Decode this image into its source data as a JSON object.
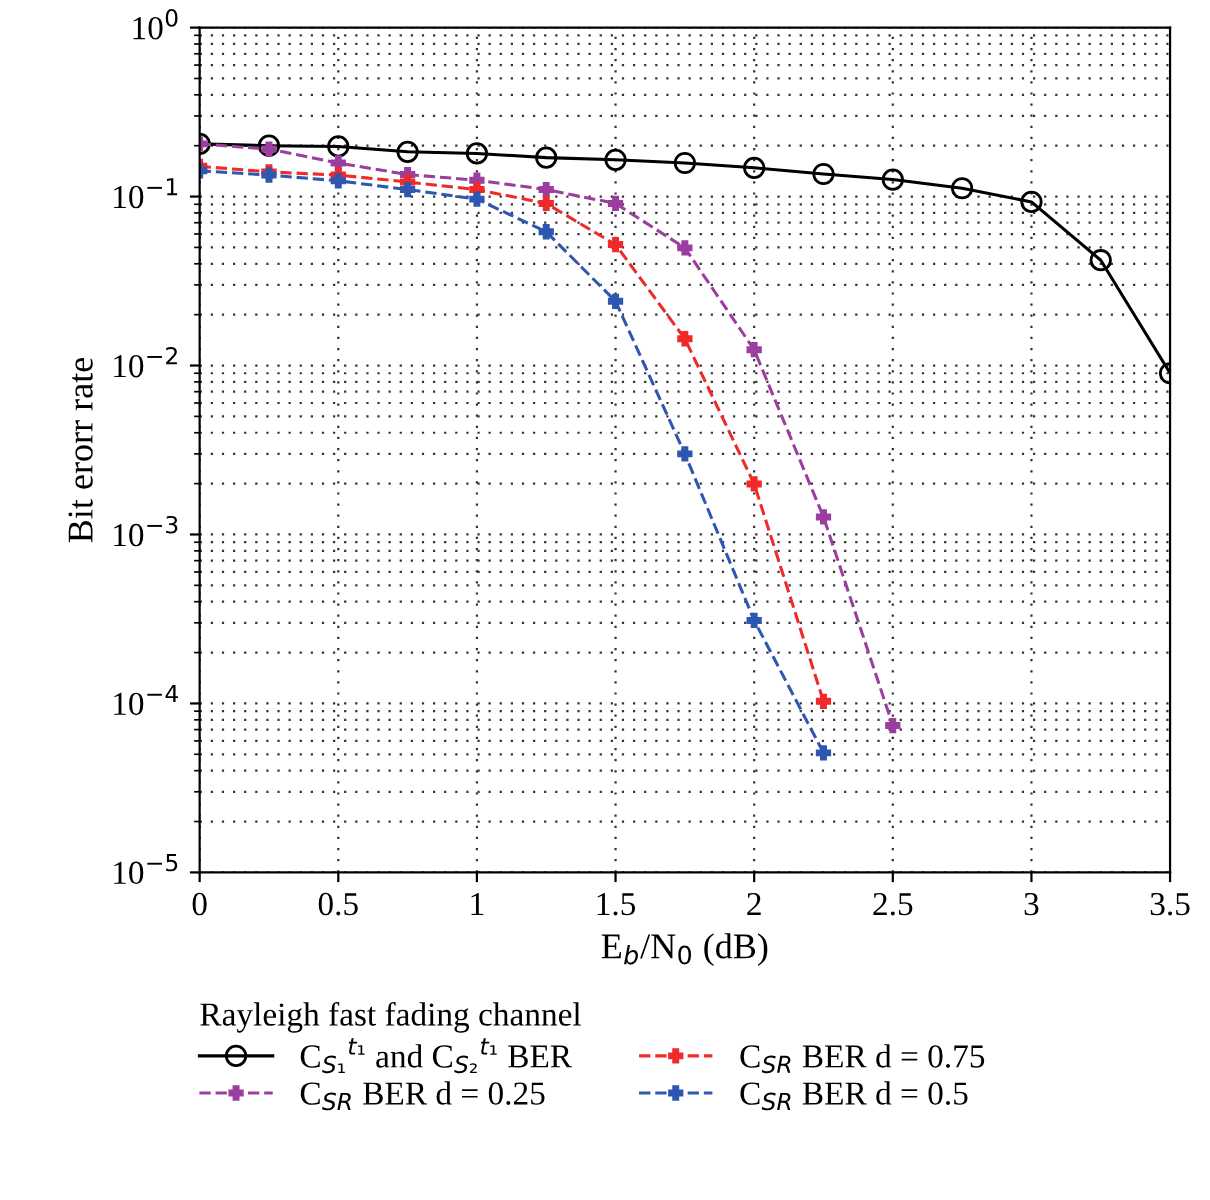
{
  "chart_data": {
    "type": "line",
    "xlabel": "E$_{b}$/N$_{0}$ (dB)",
    "ylabel": "Bit erorr rate",
    "legend_title": "Rayleigh fast fading channel",
    "x": [
      0,
      0.25,
      0.5,
      0.75,
      1.0,
      1.25,
      1.5,
      1.75,
      2.0,
      2.25,
      2.5,
      2.75,
      3.0,
      3.25,
      3.5
    ],
    "series": [
      {
        "name": "C$_{S₁}$$^{t₁}$ and C$_{S₂}$$^{t₁}$ BER",
        "color": "#000000",
        "marker": "circle",
        "line_style": "solid",
        "values": [
          0.205,
          0.2,
          0.198,
          0.184,
          0.18,
          0.17,
          0.165,
          0.158,
          0.148,
          0.136,
          0.126,
          0.112,
          0.093,
          0.042,
          0.009
        ]
      },
      {
        "name": "C$_{SR}$ BER d = 0.25",
        "color": "#9b3ea0",
        "marker": "cross",
        "line_style": "dashed",
        "x": [
          0,
          0.25,
          0.5,
          0.75,
          1.0,
          1.25,
          1.5,
          1.75,
          2.0,
          2.25,
          2.5
        ],
        "values": [
          0.205,
          0.191,
          0.158,
          0.135,
          0.125,
          0.11,
          0.091,
          0.0497,
          0.0124,
          0.00127,
          7.4e-05
        ]
      },
      {
        "name": "C$_{SR}$ BER d = 0.75",
        "color": "#ee2a2a",
        "marker": "cross",
        "line_style": "dashed",
        "x": [
          0,
          0.25,
          0.5,
          0.75,
          1.0,
          1.25,
          1.5,
          1.75,
          2.0,
          2.25
        ],
        "values": [
          0.151,
          0.14,
          0.134,
          0.122,
          0.11,
          0.091,
          0.052,
          0.0144,
          0.00199,
          0.000103
        ]
      },
      {
        "name": "C$_{SR}$ BER d = 0.5",
        "color": "#2f56b0",
        "marker": "cross",
        "line_style": "dashed",
        "x": [
          0,
          0.25,
          0.5,
          0.75,
          1.0,
          1.25,
          1.5,
          1.75,
          2.0,
          2.25
        ],
        "values": [
          0.142,
          0.134,
          0.124,
          0.11,
          0.0966,
          0.0619,
          0.024,
          0.003,
          0.00031,
          5.1e-05
        ]
      }
    ],
    "log": "y",
    "xlim": [
      0,
      3.5
    ],
    "xticks": [
      0,
      0.5,
      1,
      1.5,
      2,
      2.5,
      3,
      3.5
    ],
    "ylim": [
      1e-05,
      1
    ],
    "yticks": [
      {
        "value": 1e-05,
        "label": "10$^{−5}$"
      },
      {
        "value": 0.0001,
        "label": "10$^{−4}$"
      },
      {
        "value": 0.001,
        "label": "10$^{−3}$"
      },
      {
        "value": 0.01,
        "label": "10$^{−2}$"
      },
      {
        "value": 0.1,
        "label": "10$^{−1}$"
      },
      {
        "value": 1,
        "label": "10$^{0}$"
      }
    ],
    "grid": true,
    "legend": "bottom"
  }
}
